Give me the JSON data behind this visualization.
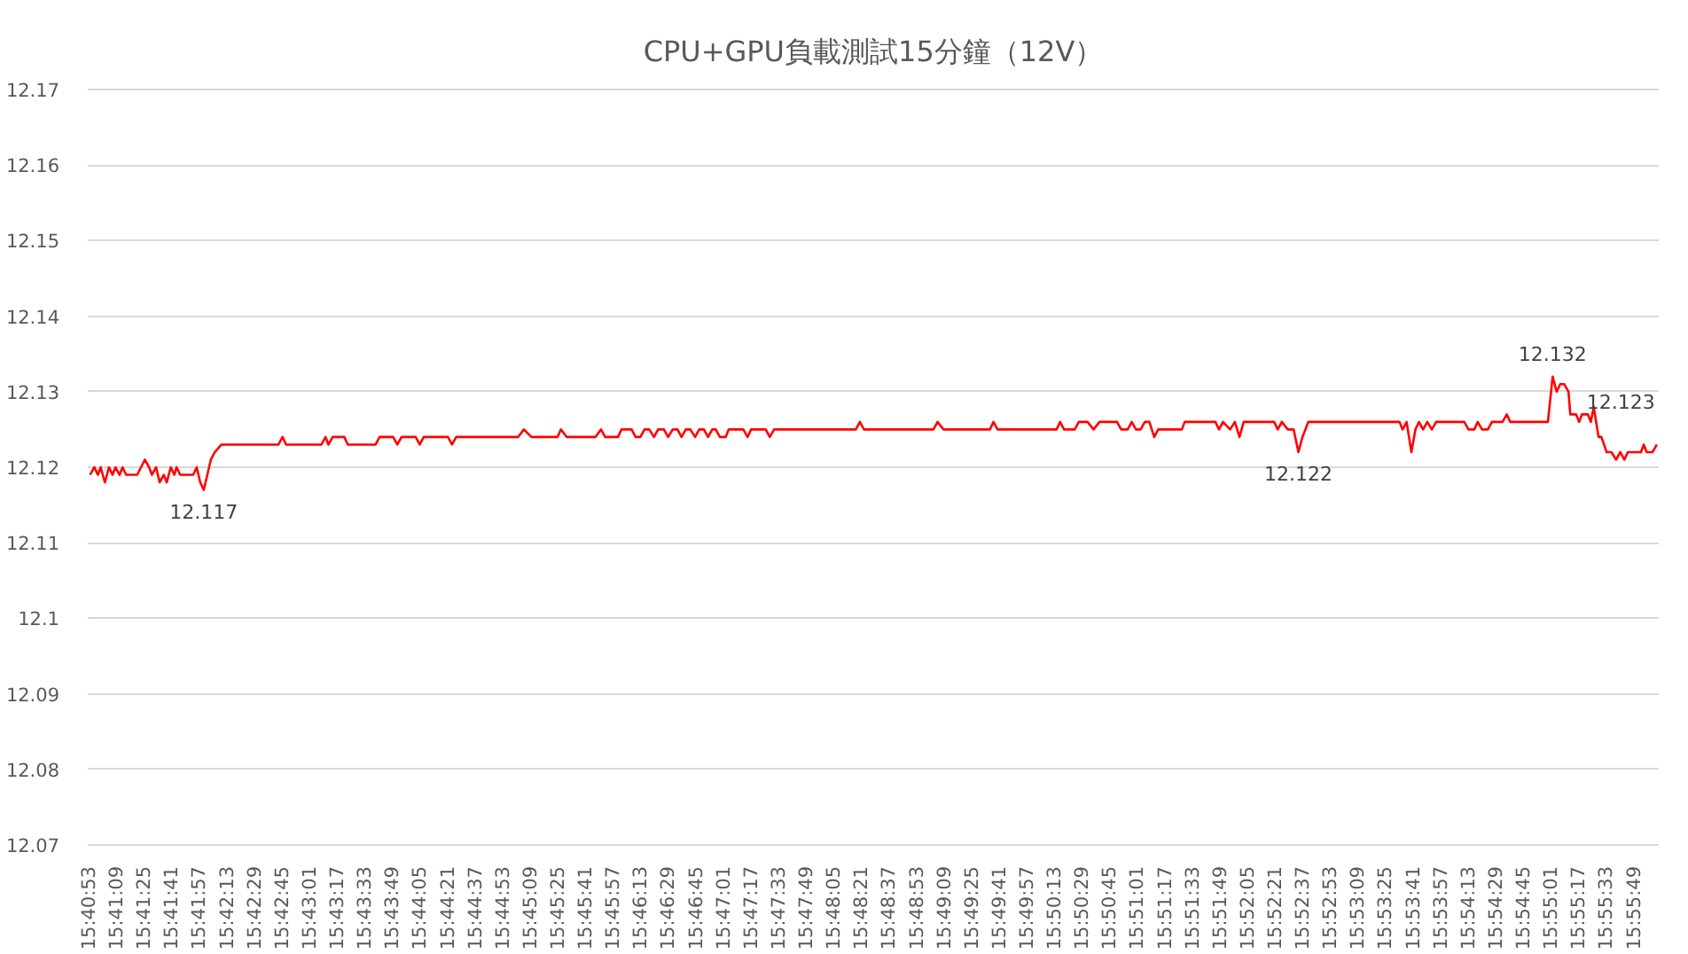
{
  "chart_data": {
    "type": "line",
    "title": "CPU+GPU負載測試15分鐘（12V）",
    "series": [
      {
        "color": "#ff0000",
        "x": [
          15.68147,
          15.68216,
          15.68273,
          15.68318,
          15.68386,
          15.68452,
          15.68509,
          15.68557,
          15.68622,
          15.68671,
          15.68728,
          15.68907,
          15.69029,
          15.69098,
          15.69143,
          15.69211,
          15.69268,
          15.69334,
          15.69382,
          15.69447,
          15.69504,
          15.69541,
          15.69598,
          15.69809,
          15.69865,
          15.69922,
          15.69979,
          15.70093,
          15.70158,
          15.70264,
          15.71182,
          15.71248,
          15.71305,
          15.71874,
          15.71942,
          15.71987,
          15.72056,
          15.72243,
          15.723,
          15.72747,
          15.72812,
          15.73031,
          15.73097,
          15.73165,
          15.73393,
          15.73458,
          15.73523,
          15.73913,
          15.73978,
          15.74047,
          15.75042,
          15.75136,
          15.75258,
          15.75677,
          15.75733,
          15.75827,
          15.76288,
          15.76379,
          15.76445,
          15.76652,
          15.76709,
          15.76871,
          15.76937,
          15.77013,
          15.77079,
          15.77156,
          15.77232,
          15.77298,
          15.77392,
          15.7746,
          15.77534,
          15.77611,
          15.77676,
          15.77744,
          15.77818,
          15.77895,
          15.77961,
          15.78037,
          15.78103,
          15.78171,
          15.78228,
          15.78293,
          15.78387,
          15.78436,
          15.78672,
          15.7874,
          15.78797,
          15.79033,
          15.79098,
          15.79167,
          15.80484,
          15.80549,
          15.80617,
          15.81735,
          15.81801,
          15.81897,
          15.82645,
          15.82702,
          15.82768,
          15.83718,
          15.83775,
          15.8384,
          15.84011,
          15.84076,
          15.84218,
          15.84315,
          15.84409,
          15.84693,
          15.84759,
          15.84864,
          15.84929,
          15.84998,
          15.85072,
          15.8514,
          15.85214,
          15.85291,
          15.85356,
          15.85737,
          15.85783,
          15.86278,
          15.86335,
          15.864,
          15.86514,
          15.86591,
          15.86665,
          15.86733,
          15.87225,
          15.87282,
          15.87347,
          15.87444,
          15.87538,
          15.87615,
          15.8768,
          15.87774,
          15.89244,
          15.89293,
          15.89358,
          15.89435,
          15.895,
          15.89557,
          15.89623,
          15.89691,
          15.89765,
          15.89833,
          15.90288,
          15.90354,
          15.90448,
          15.90504,
          15.90573,
          15.90667,
          15.90732,
          15.90903,
          15.90971,
          15.91028,
          15.91634,
          15.91711,
          15.91776,
          15.91833,
          15.91898,
          15.91966,
          15.91995,
          15.92089,
          15.92137,
          15.92183,
          15.92279,
          15.92325,
          15.92373,
          15.9245,
          15.92496,
          15.92581,
          15.92658,
          15.92734,
          15.928,
          15.92865,
          15.92922,
          15.93133,
          15.93178,
          15.93226,
          15.9332,
          15.93389
        ],
        "values": [
          12.119,
          12.12,
          12.119,
          12.12,
          12.118,
          12.12,
          12.119,
          12.12,
          12.119,
          12.12,
          12.119,
          12.119,
          12.121,
          12.12,
          12.119,
          12.12,
          12.118,
          12.119,
          12.118,
          12.12,
          12.119,
          12.12,
          12.119,
          12.119,
          12.12,
          12.118,
          12.117,
          12.121,
          12.122,
          12.123,
          12.123,
          12.124,
          12.123,
          12.123,
          12.124,
          12.123,
          12.124,
          12.124,
          12.123,
          12.123,
          12.124,
          12.124,
          12.123,
          12.124,
          12.124,
          12.123,
          12.124,
          12.124,
          12.123,
          12.124,
          12.124,
          12.125,
          12.124,
          12.124,
          12.125,
          12.124,
          12.124,
          12.125,
          12.124,
          12.124,
          12.125,
          12.125,
          12.124,
          12.124,
          12.125,
          12.125,
          12.124,
          12.125,
          12.125,
          12.124,
          12.125,
          12.125,
          12.124,
          12.125,
          12.125,
          12.124,
          12.125,
          12.125,
          12.124,
          12.125,
          12.125,
          12.124,
          12.124,
          12.125,
          12.125,
          12.124,
          12.125,
          12.125,
          12.124,
          12.125,
          12.125,
          12.126,
          12.125,
          12.125,
          12.126,
          12.125,
          12.125,
          12.126,
          12.125,
          12.125,
          12.126,
          12.125,
          12.125,
          12.126,
          12.126,
          12.125,
          12.126,
          12.126,
          12.125,
          12.125,
          12.126,
          12.125,
          12.125,
          12.126,
          12.126,
          12.124,
          12.125,
          12.125,
          12.126,
          12.126,
          12.125,
          12.126,
          12.125,
          12.126,
          12.124,
          12.126,
          12.126,
          12.125,
          12.126,
          12.125,
          12.125,
          12.122,
          12.124,
          12.126,
          12.126,
          12.125,
          12.126,
          12.122,
          12.125,
          12.126,
          12.125,
          12.126,
          12.125,
          12.126,
          12.126,
          12.125,
          12.125,
          12.126,
          12.125,
          12.125,
          12.126,
          12.126,
          12.127,
          12.126,
          12.126,
          12.132,
          12.13,
          12.131,
          12.131,
          12.13,
          12.127,
          12.127,
          12.126,
          12.127,
          12.127,
          12.126,
          12.128,
          12.124,
          12.124,
          12.122,
          12.122,
          12.121,
          12.122,
          12.121,
          12.122,
          12.122,
          12.123,
          12.122,
          12.122,
          12.123
        ]
      }
    ],
    "xlim": [
      15.6811,
      15.9342
    ],
    "xticks": [
      {
        "value": 15.681389,
        "label": "15:40:53"
      },
      {
        "value": 15.685833,
        "label": "15:41:09"
      },
      {
        "value": 15.690278,
        "label": "15:41:25"
      },
      {
        "value": 15.694722,
        "label": "15:41:41"
      },
      {
        "value": 15.699167,
        "label": "15:41:57"
      },
      {
        "value": 15.703611,
        "label": "15:42:13"
      },
      {
        "value": 15.708056,
        "label": "15:42:29"
      },
      {
        "value": 15.7125,
        "label": "15:42:45"
      },
      {
        "value": 15.716944,
        "label": "15:43:01"
      },
      {
        "value": 15.721389,
        "label": "15:43:17"
      },
      {
        "value": 15.725833,
        "label": "15:43:33"
      },
      {
        "value": 15.730278,
        "label": "15:43:49"
      },
      {
        "value": 15.734722,
        "label": "15:44:05"
      },
      {
        "value": 15.739167,
        "label": "15:44:21"
      },
      {
        "value": 15.743611,
        "label": "15:44:37"
      },
      {
        "value": 15.748056,
        "label": "15:44:53"
      },
      {
        "value": 15.7525,
        "label": "15:45:09"
      },
      {
        "value": 15.756944,
        "label": "15:45:25"
      },
      {
        "value": 15.761389,
        "label": "15:45:41"
      },
      {
        "value": 15.765833,
        "label": "15:45:57"
      },
      {
        "value": 15.770278,
        "label": "15:46:13"
      },
      {
        "value": 15.774722,
        "label": "15:46:29"
      },
      {
        "value": 15.779167,
        "label": "15:46:45"
      },
      {
        "value": 15.783611,
        "label": "15:47:01"
      },
      {
        "value": 15.788056,
        "label": "15:47:17"
      },
      {
        "value": 15.7925,
        "label": "15:47:33"
      },
      {
        "value": 15.796944,
        "label": "15:47:49"
      },
      {
        "value": 15.801389,
        "label": "15:48:05"
      },
      {
        "value": 15.805833,
        "label": "15:48:21"
      },
      {
        "value": 15.810278,
        "label": "15:48:37"
      },
      {
        "value": 15.814722,
        "label": "15:48:53"
      },
      {
        "value": 15.819167,
        "label": "15:49:09"
      },
      {
        "value": 15.823611,
        "label": "15:49:25"
      },
      {
        "value": 15.828056,
        "label": "15:49:41"
      },
      {
        "value": 15.8325,
        "label": "15:49:57"
      },
      {
        "value": 15.836944,
        "label": "15:50:13"
      },
      {
        "value": 15.841389,
        "label": "15:50:29"
      },
      {
        "value": 15.845833,
        "label": "15:50:45"
      },
      {
        "value": 15.850278,
        "label": "15:51:01"
      },
      {
        "value": 15.854722,
        "label": "15:51:17"
      },
      {
        "value": 15.859167,
        "label": "15:51:33"
      },
      {
        "value": 15.863611,
        "label": "15:51:49"
      },
      {
        "value": 15.868056,
        "label": "15:52:05"
      },
      {
        "value": 15.8725,
        "label": "15:52:21"
      },
      {
        "value": 15.876944,
        "label": "15:52:37"
      },
      {
        "value": 15.881389,
        "label": "15:52:53"
      },
      {
        "value": 15.885833,
        "label": "15:53:09"
      },
      {
        "value": 15.890278,
        "label": "15:53:25"
      },
      {
        "value": 15.894722,
        "label": "15:53:41"
      },
      {
        "value": 15.899167,
        "label": "15:53:57"
      },
      {
        "value": 15.903611,
        "label": "15:54:13"
      },
      {
        "value": 15.908056,
        "label": "15:54:29"
      },
      {
        "value": 15.9125,
        "label": "15:54:45"
      },
      {
        "value": 15.916944,
        "label": "15:55:01"
      },
      {
        "value": 15.921389,
        "label": "15:55:17"
      },
      {
        "value": 15.925833,
        "label": "15:55:33"
      },
      {
        "value": 15.930278,
        "label": "15:55:49"
      }
    ],
    "ylim": [
      12.07,
      12.17
    ],
    "yticks": [
      12.07,
      12.08,
      12.09,
      12.1,
      12.11,
      12.12,
      12.13,
      12.14,
      12.15,
      12.16,
      12.17
    ],
    "grid": "y",
    "annotations": [
      {
        "text": "12.117",
        "x": 15.69979,
        "y": 12.117
      },
      {
        "text": "12.122",
        "x": 15.87615,
        "y": 12.122
      },
      {
        "text": "12.132",
        "x": 15.91711,
        "y": 12.132
      },
      {
        "text": "12.123",
        "x": 15.93389,
        "y": 12.123
      }
    ]
  }
}
